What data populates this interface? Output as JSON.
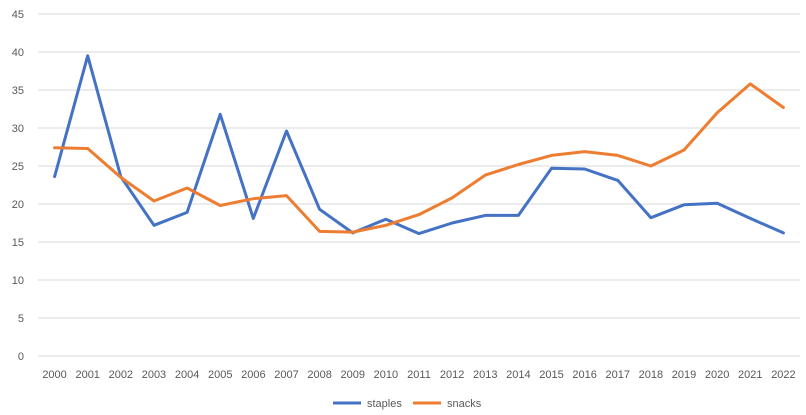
{
  "chart_data": {
    "type": "line",
    "title": "",
    "xlabel": "",
    "ylabel": "",
    "ylim": [
      0,
      45
    ],
    "yticks": [
      0,
      5,
      10,
      15,
      20,
      25,
      30,
      35,
      40,
      45
    ],
    "grid": true,
    "legend_position": "bottom",
    "x": [
      "2000",
      "2001",
      "2002",
      "2003",
      "2004",
      "2005",
      "2006",
      "2007",
      "2008",
      "2009",
      "2010",
      "2011",
      "2012",
      "2013",
      "2014",
      "2015",
      "2016",
      "2017",
      "2018",
      "2019",
      "2020",
      "2021",
      "2022"
    ],
    "series": [
      {
        "name": "staples",
        "color": "#4472C4",
        "values": [
          23.6,
          39.5,
          23.6,
          17.2,
          18.9,
          31.8,
          18.1,
          29.6,
          19.3,
          16.2,
          18.0,
          16.1,
          17.5,
          18.5,
          18.5,
          24.7,
          24.6,
          23.1,
          18.2,
          19.9,
          20.1,
          18.1,
          16.2
        ]
      },
      {
        "name": "snacks",
        "color": "#ED7D31",
        "values": [
          27.4,
          27.3,
          23.5,
          20.4,
          22.1,
          19.8,
          20.7,
          21.1,
          16.4,
          16.3,
          17.2,
          18.6,
          20.8,
          23.8,
          25.2,
          26.4,
          26.9,
          26.4,
          25.0,
          27.1,
          32.0,
          35.8,
          32.7
        ]
      }
    ]
  }
}
